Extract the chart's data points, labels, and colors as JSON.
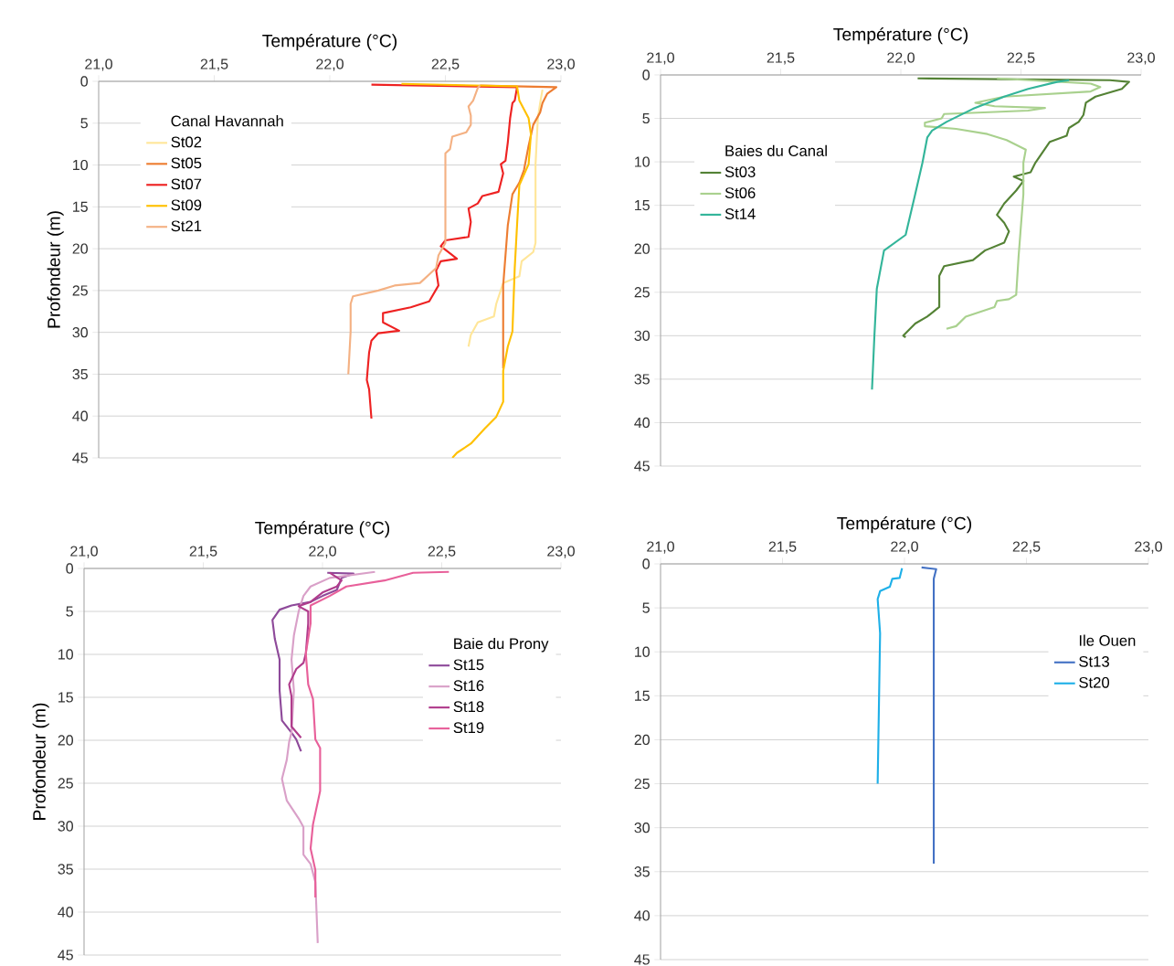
{
  "chart_data": [
    {
      "type": "line",
      "xlabel": "Température (°C)",
      "ylabel": "Profondeur (m)",
      "legend_title": "Canal Havannah",
      "legend": "top left",
      "grid": "y",
      "xlim": [
        21,
        23
      ],
      "xticks": [
        {
          "value": 21,
          "label": "21,0"
        },
        {
          "value": 21.5,
          "label": "21,5"
        },
        {
          "value": 22,
          "label": "22,0"
        },
        {
          "value": 22.5,
          "label": "22,5"
        },
        {
          "value": 23,
          "label": "23,0"
        }
      ],
      "ylim": [
        45,
        0
      ],
      "yticks": [
        0,
        5,
        10,
        15,
        20,
        25,
        30,
        35,
        40,
        45
      ],
      "series": [
        {
          "name": "St02",
          "color": "#ffe699",
          "x": [
            22.92,
            22.91,
            22.9,
            22.89,
            22.89,
            22.88,
            22.83,
            22.82,
            22.75,
            22.72,
            22.71,
            22.64,
            22.61,
            22.6
          ],
          "values": [
            1.0,
            2.6,
            4.4,
            9.9,
            19.3,
            20.4,
            21.5,
            23.3,
            24.1,
            26.6,
            28.1,
            28.8,
            30.3,
            31.7
          ]
        },
        {
          "name": "St05",
          "color": "#ed7d31",
          "x": [
            22.65,
            22.98,
            22.94,
            22.92,
            22.91,
            22.88,
            22.86,
            22.84,
            22.82,
            22.79,
            22.77,
            22.76,
            22.75,
            22.75
          ],
          "values": [
            0.5,
            0.7,
            1.5,
            2.6,
            3.7,
            5.2,
            7.7,
            10.6,
            12.1,
            13.5,
            17.2,
            20.8,
            24.4,
            34.3
          ]
        },
        {
          "name": "St07",
          "color": "#ee2222",
          "x": [
            22.18,
            22.81,
            22.8,
            22.79,
            22.78,
            22.77,
            22.76,
            22.74,
            22.75,
            22.73,
            22.66,
            22.64,
            22.6,
            22.61,
            22.6,
            22.5,
            22.48,
            22.55,
            22.48,
            22.46,
            22.47,
            22.43,
            22.35,
            22.23,
            22.23,
            22.3,
            22.21,
            22.18,
            22.17,
            22.16,
            22.17,
            22.18
          ],
          "values": [
            0.4,
            0.7,
            2.3,
            2.6,
            4.4,
            7.3,
            9.5,
            9.9,
            11.0,
            13.2,
            13.7,
            14.6,
            15.2,
            16.8,
            18.6,
            19.0,
            19.7,
            21.2,
            21.5,
            22.6,
            24.4,
            26.3,
            27.0,
            27.7,
            28.8,
            29.8,
            30.1,
            31.0,
            32.4,
            35.7,
            36.8,
            40.3
          ]
        },
        {
          "name": "St09",
          "color": "#ffc000",
          "x": [
            22.31,
            22.81,
            22.82,
            22.86,
            22.87,
            22.86,
            22.82,
            22.81,
            22.8,
            22.79,
            22.77,
            22.75,
            22.75,
            22.72,
            22.67,
            22.61,
            22.55,
            22.53
          ],
          "values": [
            0.3,
            0.6,
            2.3,
            4.4,
            6.3,
            9.9,
            12.4,
            17.2,
            22.3,
            29.9,
            31.7,
            34.6,
            38.3,
            40.1,
            41.5,
            43.3,
            44.4,
            45.0
          ]
        },
        {
          "name": "St21",
          "color": "#f4b183",
          "x": [
            22.65,
            22.64,
            22.62,
            22.6,
            22.61,
            22.61,
            22.59,
            22.53,
            22.52,
            22.5,
            22.5,
            22.47,
            22.46,
            22.39,
            22.28,
            22.21,
            22.1,
            22.09,
            22.09,
            22.08
          ],
          "values": [
            0.5,
            0.8,
            2.3,
            3.0,
            4.1,
            5.2,
            6.1,
            6.6,
            8.1,
            8.6,
            19.3,
            20.8,
            22.3,
            24.1,
            24.4,
            25.0,
            25.7,
            26.6,
            29.9,
            35.0
          ]
        }
      ]
    },
    {
      "type": "line",
      "xlabel": "Température (°C)",
      "legend_title": "Baies du Canal",
      "legend": "left",
      "grid": "y",
      "xlim": [
        21,
        23
      ],
      "xticks": [
        {
          "value": 21,
          "label": "21,0"
        },
        {
          "value": 21.5,
          "label": "21,5"
        },
        {
          "value": 22,
          "label": "22,0"
        },
        {
          "value": 22.5,
          "label": "22,5"
        },
        {
          "value": 23,
          "label": "23,0"
        }
      ],
      "ylim": [
        45,
        0
      ],
      "yticks": [
        0,
        5,
        10,
        15,
        20,
        25,
        30,
        35,
        40,
        45
      ],
      "series": [
        {
          "name": "St03",
          "color": "#548235",
          "x": [
            22.07,
            22.87,
            22.95,
            22.92,
            22.81,
            22.77,
            22.76,
            22.74,
            22.7,
            22.69,
            22.62,
            22.56,
            22.54,
            22.47,
            22.51,
            22.48,
            22.43,
            22.4,
            22.43,
            22.45,
            22.43,
            22.35,
            22.3,
            22.18,
            22.16,
            22.16,
            22.11,
            22.06,
            22.01,
            22.02
          ],
          "values": [
            0.4,
            0.6,
            0.8,
            1.6,
            2.5,
            3.2,
            4.6,
            5.4,
            6.1,
            7.0,
            7.7,
            10.1,
            11.2,
            11.7,
            12.2,
            13.3,
            14.8,
            16.1,
            17.0,
            18.0,
            19.3,
            20.2,
            21.3,
            22.0,
            23.1,
            26.7,
            27.8,
            28.6,
            30.0,
            30.2
          ]
        },
        {
          "name": "St06",
          "color": "#a9d18e",
          "x": [
            22.4,
            22.79,
            22.83,
            22.79,
            22.43,
            22.31,
            22.39,
            22.6,
            22.53,
            22.18,
            22.17,
            22.1,
            22.1,
            22.23,
            22.36,
            22.44,
            22.52,
            22.51,
            22.51,
            22.49,
            22.48,
            22.45,
            22.4,
            22.39,
            22.27,
            22.23,
            22.19
          ],
          "values": [
            0.4,
            1.0,
            1.4,
            1.9,
            2.5,
            3.2,
            3.6,
            3.8,
            4.1,
            4.5,
            5.0,
            5.5,
            5.9,
            6.2,
            6.8,
            7.5,
            8.6,
            10.1,
            13.7,
            20.9,
            25.3,
            25.8,
            26.0,
            26.7,
            27.8,
            28.9,
            29.2
          ]
        },
        {
          "name": "St14",
          "color": "#33b59a",
          "x": [
            22.7,
            22.65,
            22.53,
            22.43,
            22.3,
            22.19,
            22.13,
            22.11,
            22.09,
            22.06,
            22.02,
            21.93,
            21.9,
            21.89,
            21.88
          ],
          "values": [
            0.6,
            0.8,
            1.6,
            2.5,
            3.9,
            5.4,
            6.4,
            7.2,
            10.1,
            13.7,
            18.4,
            20.2,
            24.6,
            30.0,
            36.2
          ]
        }
      ]
    },
    {
      "type": "line",
      "xlabel": "Température (°C)",
      "ylabel": "Profondeur (m)",
      "legend_title": "Baie du Prony",
      "legend": "right",
      "grid": "y",
      "xlim": [
        21,
        23
      ],
      "xticks": [
        {
          "value": 21,
          "label": "21,0"
        },
        {
          "value": 21.5,
          "label": "21,5"
        },
        {
          "value": 22,
          "label": "22,0"
        },
        {
          "value": 22.5,
          "label": "22,5"
        },
        {
          "value": 23,
          "label": "23,0"
        }
      ],
      "ylim": [
        45,
        0
      ],
      "yticks": [
        0,
        5,
        10,
        15,
        20,
        25,
        30,
        35,
        40,
        45
      ],
      "series": [
        {
          "name": "St15",
          "color": "#8e4a9a",
          "x": [
            22.02,
            22.13,
            22.08,
            22.06,
            22.0,
            21.95,
            21.87,
            21.82,
            21.79,
            21.8,
            21.82,
            21.82,
            21.83,
            21.87,
            21.89,
            21.91
          ],
          "values": [
            0.5,
            0.6,
            1.1,
            2.5,
            3.2,
            3.9,
            4.3,
            4.8,
            6.0,
            8.2,
            10.6,
            14.2,
            17.7,
            19.1,
            19.9,
            21.3
          ]
        },
        {
          "name": "St16",
          "color": "#d9a0c8",
          "x": [
            22.22,
            22.03,
            21.95,
            21.92,
            21.9,
            21.88,
            21.87,
            21.88,
            21.87,
            21.86,
            21.85,
            21.83,
            21.85,
            21.9,
            21.92,
            21.92,
            21.95,
            21.97,
            21.98
          ],
          "values": [
            0.4,
            1.1,
            2.1,
            3.2,
            5.0,
            7.8,
            10.6,
            14.2,
            19.1,
            20.2,
            22.3,
            24.5,
            27.0,
            29.1,
            30.1,
            33.3,
            34.4,
            36.5,
            43.6
          ]
        },
        {
          "name": "St18",
          "color": "#b03c8c",
          "x": [
            22.03,
            22.08,
            22.06,
            22.0,
            21.95,
            21.9,
            21.94,
            21.94,
            21.93,
            21.92,
            21.89,
            21.86,
            21.87,
            21.87,
            21.91
          ],
          "values": [
            0.5,
            1.4,
            2.1,
            2.8,
            3.9,
            4.4,
            5.0,
            6.4,
            9.9,
            11.0,
            11.7,
            13.5,
            14.9,
            18.4,
            19.7
          ]
        },
        {
          "name": "St19",
          "color": "#e8609a",
          "x": [
            22.53,
            22.38,
            22.26,
            22.1,
            22.03,
            21.95,
            21.95,
            21.93,
            21.94,
            21.96,
            21.97,
            21.99,
            21.99,
            21.96,
            21.95,
            21.97,
            21.97
          ],
          "values": [
            0.4,
            0.5,
            1.4,
            2.1,
            3.2,
            4.3,
            6.4,
            9.9,
            13.5,
            15.2,
            19.9,
            20.9,
            25.9,
            29.8,
            32.6,
            35.1,
            38.3
          ]
        }
      ]
    },
    {
      "type": "line",
      "xlabel": "Température (°C)",
      "legend_title": "Ile Ouen",
      "legend": "right",
      "grid": "y",
      "xlim": [
        21,
        23
      ],
      "xticks": [
        {
          "value": 21,
          "label": "21,0"
        },
        {
          "value": 21.5,
          "label": "21,5"
        },
        {
          "value": 22,
          "label": "22,0"
        },
        {
          "value": 22.5,
          "label": "22,5"
        },
        {
          "value": 23,
          "label": "23,0"
        }
      ],
      "ylim": [
        45,
        0
      ],
      "yticks": [
        0,
        5,
        10,
        15,
        20,
        25,
        30,
        35,
        40,
        45
      ],
      "series": [
        {
          "name": "St13",
          "color": "#4472c4",
          "x": [
            22.07,
            22.13,
            22.12,
            22.12,
            22.12,
            22.12
          ],
          "values": [
            0.4,
            0.6,
            1.7,
            9.7,
            20.0,
            34.1
          ]
        },
        {
          "name": "St20",
          "color": "#1fb0e8",
          "x": [
            21.99,
            21.98,
            21.95,
            21.94,
            21.9,
            21.89,
            21.9,
            21.89
          ],
          "values": [
            0.5,
            1.6,
            1.7,
            2.6,
            3.1,
            4.0,
            7.9,
            25.0
          ]
        }
      ]
    }
  ]
}
